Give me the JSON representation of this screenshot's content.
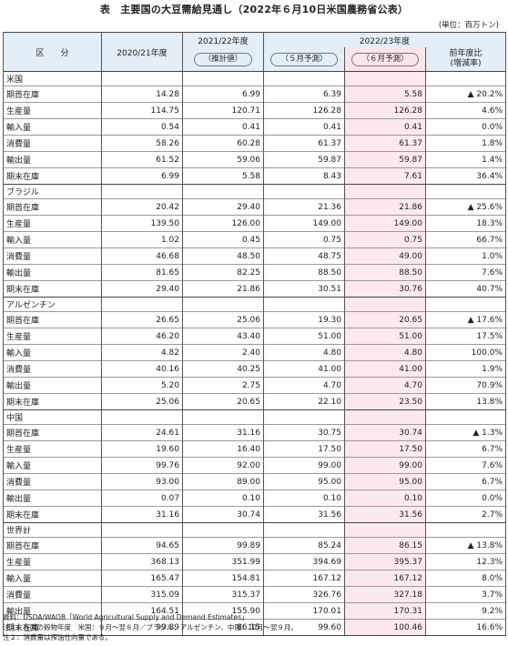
{
  "title": "表　主要国の大豆需給見通し（2022年６月10日米国農務省公表）",
  "unit": "(単位：百万トン)",
  "headers": {
    "col_item": "区　　分",
    "col_2020": "2020/21年度",
    "col_2021": "2021/22年度",
    "col_2021_sub": "（推計値）",
    "col_2022": "2022/23年度",
    "col_2022_may": "（５月予測）",
    "col_2022_jun": "（６月予測）",
    "col_change": "前年度比",
    "col_change_sub": "(増減率)"
  },
  "regions": [
    {
      "name": "米国",
      "rows": [
        {
          "label": "期首在庫",
          "v2020": "14.28",
          "v2021": "6.99",
          "may": "6.39",
          "jun": "5.58",
          "chg": "▲ 20.2%"
        },
        {
          "label": "生産量",
          "v2020": "114.75",
          "v2021": "120.71",
          "may": "126.28",
          "jun": "126.28",
          "chg": "4.6%"
        },
        {
          "label": "輸入量",
          "v2020": "0.54",
          "v2021": "0.41",
          "may": "0.41",
          "jun": "0.41",
          "chg": "0.0%"
        },
        {
          "label": "消費量",
          "v2020": "58.26",
          "v2021": "60.28",
          "may": "61.37",
          "jun": "61.37",
          "chg": "1.8%"
        },
        {
          "label": "輸出量",
          "v2020": "61.52",
          "v2021": "59.06",
          "may": "59.87",
          "jun": "59.87",
          "chg": "1.4%"
        },
        {
          "label": "期末在庫",
          "v2020": "6.99",
          "v2021": "5.58",
          "may": "8.43",
          "jun": "7.61",
          "chg": "36.4%"
        }
      ]
    },
    {
      "name": "ブラジル",
      "rows": [
        {
          "label": "期首在庫",
          "v2020": "20.42",
          "v2021": "29.40",
          "may": "21.36",
          "jun": "21.86",
          "chg": "▲ 25.6%"
        },
        {
          "label": "生産量",
          "v2020": "139.50",
          "v2021": "126.00",
          "may": "149.00",
          "jun": "149.00",
          "chg": "18.3%"
        },
        {
          "label": "輸入量",
          "v2020": "1.02",
          "v2021": "0.45",
          "may": "0.75",
          "jun": "0.75",
          "chg": "66.7%"
        },
        {
          "label": "消費量",
          "v2020": "46.68",
          "v2021": "48.50",
          "may": "48.75",
          "jun": "49.00",
          "chg": "1.0%"
        },
        {
          "label": "輸出量",
          "v2020": "81.65",
          "v2021": "82.25",
          "may": "88.50",
          "jun": "88.50",
          "chg": "7.6%"
        },
        {
          "label": "期末在庫",
          "v2020": "29.40",
          "v2021": "21.86",
          "may": "30.51",
          "jun": "30.76",
          "chg": "40.7%"
        }
      ]
    },
    {
      "name": "アルゼンチン",
      "rows": [
        {
          "label": "期首在庫",
          "v2020": "26.65",
          "v2021": "25.06",
          "may": "19.30",
          "jun": "20.65",
          "chg": "▲ 17.6%"
        },
        {
          "label": "生産量",
          "v2020": "46.20",
          "v2021": "43.40",
          "may": "51.00",
          "jun": "51.00",
          "chg": "17.5%"
        },
        {
          "label": "輸入量",
          "v2020": "4.82",
          "v2021": "2.40",
          "may": "4.80",
          "jun": "4.80",
          "chg": "100.0%"
        },
        {
          "label": "消費量",
          "v2020": "40.16",
          "v2021": "40.25",
          "may": "41.00",
          "jun": "41.00",
          "chg": "1.9%"
        },
        {
          "label": "輸出量",
          "v2020": "5.20",
          "v2021": "2.75",
          "may": "4.70",
          "jun": "4.70",
          "chg": "70.9%"
        },
        {
          "label": "期末在庫",
          "v2020": "25.06",
          "v2021": "20.65",
          "may": "22.10",
          "jun": "23.50",
          "chg": "13.8%"
        }
      ]
    },
    {
      "name": "中国",
      "rows": [
        {
          "label": "期首在庫",
          "v2020": "24.61",
          "v2021": "31.16",
          "may": "30.75",
          "jun": "30.74",
          "chg": "▲ 1.3%"
        },
        {
          "label": "生産量",
          "v2020": "19.60",
          "v2021": "16.40",
          "may": "17.50",
          "jun": "17.50",
          "chg": "6.7%"
        },
        {
          "label": "輸入量",
          "v2020": "99.76",
          "v2021": "92.00",
          "may": "99.00",
          "jun": "99.00",
          "chg": "7.6%"
        },
        {
          "label": "消費量",
          "v2020": "93.00",
          "v2021": "89.00",
          "may": "95.00",
          "jun": "95.00",
          "chg": "6.7%"
        },
        {
          "label": "輸出量",
          "v2020": "0.07",
          "v2021": "0.10",
          "may": "0.10",
          "jun": "0.10",
          "chg": "0.0%"
        },
        {
          "label": "期末在庫",
          "v2020": "31.16",
          "v2021": "30.74",
          "may": "31.56",
          "jun": "31.56",
          "chg": "2.7%"
        }
      ]
    },
    {
      "name": "世界計",
      "rows": [
        {
          "label": "期首在庫",
          "v2020": "94.65",
          "v2021": "99.89",
          "may": "85.24",
          "jun": "86.15",
          "chg": "▲ 13.8%"
        },
        {
          "label": "生産量",
          "v2020": "368.13",
          "v2021": "351.99",
          "may": "394.69",
          "jun": "395.37",
          "chg": "12.3%"
        },
        {
          "label": "輸入量",
          "v2020": "165.47",
          "v2021": "154.81",
          "may": "167.12",
          "jun": "167.12",
          "chg": "8.0%"
        },
        {
          "label": "消費量",
          "v2020": "315.09",
          "v2021": "315.37",
          "may": "326.76",
          "jun": "327.18",
          "chg": "3.7%"
        },
        {
          "label": "輸出量",
          "v2020": "164.51",
          "v2021": "155.90",
          "may": "170.01",
          "jun": "170.31",
          "chg": "9.2%"
        },
        {
          "label": "期末在庫",
          "v2020": "99.89",
          "v2021": "86.15",
          "may": "99.60",
          "jun": "100.46",
          "chg": "16.6%"
        }
      ]
    }
  ],
  "notes": [
    "資料：USDA/WAOB「World Agricultural Supply and Demand Estimates」",
    "注１：各国の穀物年度　米国：９月～翌８月／ブラジル、アルゼンチン、中国：10月～翌９月。",
    "注２：消費量は搾油仕向量である。"
  ]
}
